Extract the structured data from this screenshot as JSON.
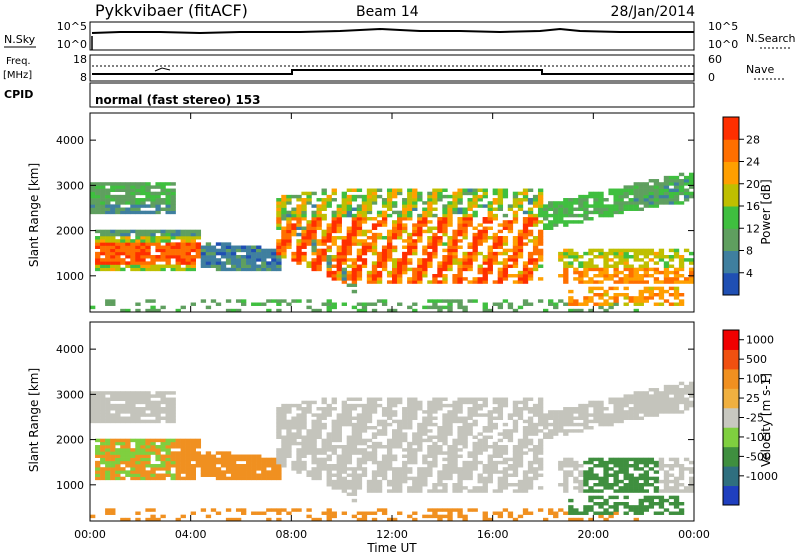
{
  "header": {
    "station": "Pykkvibaer (fitACF)",
    "beam": "Beam 14",
    "date": "28/Jan/2014"
  },
  "panels": {
    "nsky": {
      "label": "N.Sky",
      "tick_top": "10^5",
      "tick_bottom": "10^0",
      "right_label": "N.Search",
      "right_tick_top": "10^5",
      "right_tick_bottom": "10^0"
    },
    "freq": {
      "label_line1": "Freq.",
      "label_line2": "[MHz]",
      "tick_top": "18",
      "tick_bottom": "8",
      "right_label": "Nave",
      "right_tick_top": "60",
      "right_tick_bottom": "0"
    },
    "cpid": {
      "label": "CPID",
      "text": "normal (fast stereo) 153"
    }
  },
  "colors": {
    "power": [
      "#0000ff",
      "#1f4fb3",
      "#3f7f9f",
      "#5f9f5f",
      "#3fbf3f",
      "#bfbf00",
      "#ff9f00",
      "#ff6f00",
      "#ff2f00",
      "#ff0000"
    ],
    "velocity": [
      "#1f3fbf",
      "#2f6f7f",
      "#3f8f3f",
      "#7fcf3f",
      "#c8c8c0",
      "#f0b040",
      "#f09020",
      "#f05010",
      "#f00000"
    ],
    "ground": "#c4c4bc"
  },
  "chart_data": [
    {
      "type": "heatmap",
      "name": "power",
      "ylabel": "Slant Range [km]",
      "yticks": [
        "1000",
        "2000",
        "3000",
        "4000"
      ],
      "ylim": [
        200,
        4600
      ],
      "colorbar_label": "Power [dB]",
      "colorbar_ticks": [
        "4",
        "8",
        "12",
        "16",
        "20",
        "24",
        "28"
      ],
      "colorbar_range": [
        0,
        32
      ]
    },
    {
      "type": "heatmap",
      "name": "velocity",
      "ylabel": "Slant Range [km]",
      "yticks": [
        "1000",
        "2000",
        "3000",
        "4000"
      ],
      "ylim": [
        200,
        4600
      ],
      "colorbar_label": "Velocity [m s-1]",
      "colorbar_ticks": [
        "1000",
        "500",
        "100",
        "25",
        "-25",
        "-100",
        "-500",
        "-1000"
      ],
      "xlabel": "Time UT",
      "xticks": [
        "00:00",
        "04:00",
        "08:00",
        "12:00",
        "16:00",
        "20:00",
        "00:00"
      ],
      "xlim": [
        0,
        24
      ]
    }
  ]
}
